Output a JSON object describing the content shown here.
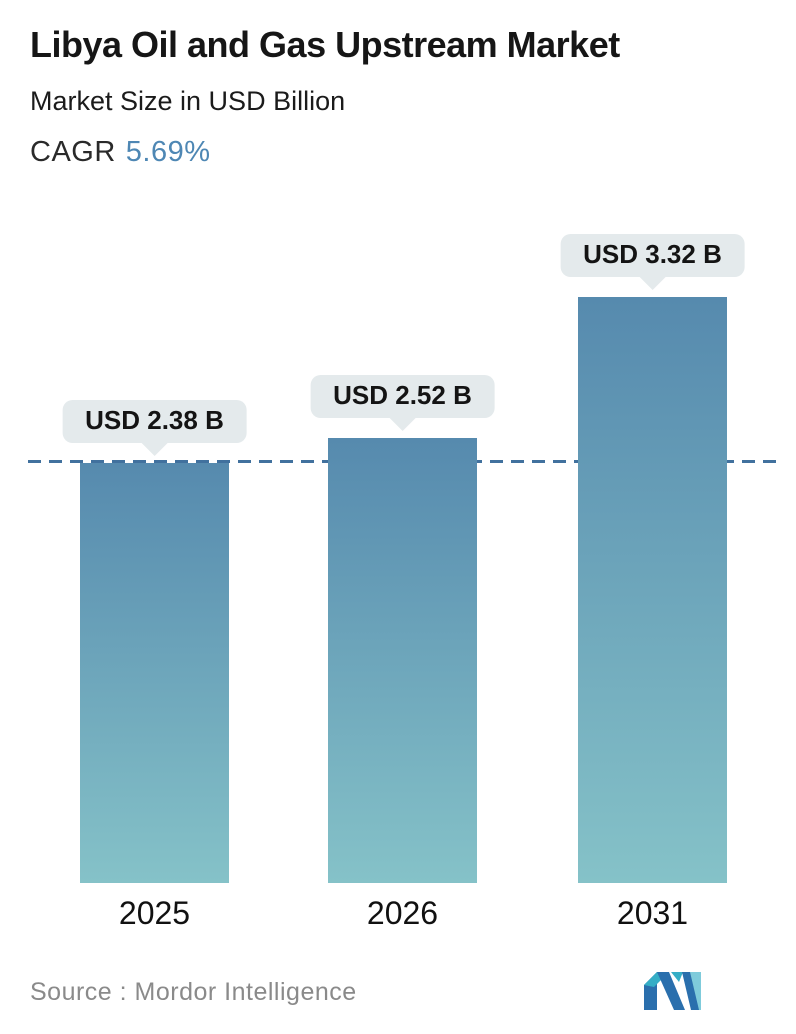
{
  "header": {
    "title": "Libya Oil and Gas Upstream Market",
    "subtitle": "Market Size in USD Billion",
    "cagr_label": "CAGR",
    "cagr_value": "5.69%"
  },
  "chart_data": {
    "type": "bar",
    "title": "Libya Oil and Gas Upstream Market",
    "subtitle": "Market Size in USD Billion",
    "cagr": "5.69%",
    "categories": [
      "2025",
      "2026",
      "2031"
    ],
    "values": [
      2.38,
      2.52,
      3.32
    ],
    "value_labels": [
      "USD 2.38 B",
      "USD 2.52 B",
      "USD 3.32 B"
    ],
    "unit": "USD Billion",
    "ylim": [
      0,
      3.76
    ],
    "grid": false,
    "legend": false,
    "reference_line": {
      "value": 2.38,
      "style": "dashed"
    }
  },
  "footer": {
    "source": "Source :  Mordor Intelligence",
    "logo_name": "mordor-intelligence-logo"
  },
  "colors": {
    "bar_gradient_top": "#568aae",
    "bar_gradient_bottom": "#85c2c8",
    "reference_line": "#41719e",
    "bubble_bg": "#e4eaec",
    "cagr_accent": "#4e87b4",
    "title_text": "#161616",
    "source_text": "#8a8a8a",
    "logo_blue": "#2a6fad",
    "logo_teal": "#35aec6",
    "logo_light_teal": "#7fcbdb"
  }
}
